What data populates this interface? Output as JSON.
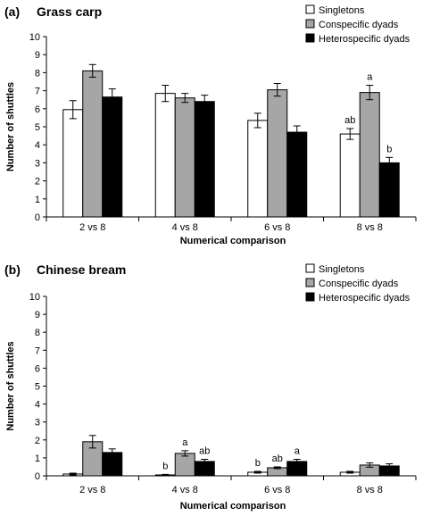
{
  "chart_data": [
    {
      "type": "bar",
      "panel": "(a)",
      "title": "Grass carp",
      "xlabel": "Numerical comparison",
      "ylabel": "Number of shuttles",
      "ylim": [
        0,
        10
      ],
      "yticks": [
        0,
        1,
        2,
        3,
        4,
        5,
        6,
        7,
        8,
        9,
        10
      ],
      "legend_position": "top-right",
      "categories": [
        "2 vs 8",
        "4 vs 8",
        "6 vs 8",
        "8 vs 8"
      ],
      "series": [
        {
          "name": "Singletons",
          "color": "#ffffff",
          "values": [
            5.95,
            6.85,
            5.35,
            4.6
          ],
          "errors": [
            0.5,
            0.45,
            0.4,
            0.3
          ]
        },
        {
          "name": "Conspecific dyads",
          "color": "#a6a6a6",
          "values": [
            8.1,
            6.6,
            7.05,
            6.9
          ],
          "errors": [
            0.35,
            0.25,
            0.35,
            0.4
          ]
        },
        {
          "name": "Heterospecific dyads",
          "color": "#000000",
          "values": [
            6.65,
            6.4,
            4.7,
            3.0
          ],
          "errors": [
            0.45,
            0.35,
            0.35,
            0.3
          ]
        }
      ],
      "annotations": [
        {
          "category": 3,
          "series": 0,
          "text": "ab"
        },
        {
          "category": 3,
          "series": 1,
          "text": "a"
        },
        {
          "category": 3,
          "series": 2,
          "text": "b"
        }
      ]
    },
    {
      "type": "bar",
      "panel": "(b)",
      "title": "Chinese bream",
      "xlabel": "Numerical comparison",
      "ylabel": "Number of shuttles",
      "ylim": [
        0,
        10
      ],
      "yticks": [
        0,
        1,
        2,
        3,
        4,
        5,
        6,
        7,
        8,
        9,
        10
      ],
      "legend_position": "top-right",
      "categories": [
        "2 vs 8",
        "4 vs 8",
        "6 vs 8",
        "8 vs 8"
      ],
      "series": [
        {
          "name": "Singletons",
          "color": "#ffffff",
          "values": [
            0.1,
            0.05,
            0.2,
            0.2
          ],
          "errors": [
            0.05,
            0.03,
            0.05,
            0.05
          ]
        },
        {
          "name": "Conspecific dyads",
          "color": "#a6a6a6",
          "values": [
            1.9,
            1.25,
            0.45,
            0.6
          ],
          "errors": [
            0.35,
            0.15,
            0.05,
            0.12
          ]
        },
        {
          "name": "Heterospecific dyads",
          "color": "#000000",
          "values": [
            1.3,
            0.8,
            0.8,
            0.55
          ],
          "errors": [
            0.2,
            0.12,
            0.12,
            0.12
          ]
        }
      ],
      "annotations": [
        {
          "category": 1,
          "series": 0,
          "text": "b"
        },
        {
          "category": 1,
          "series": 1,
          "text": "a"
        },
        {
          "category": 1,
          "series": 2,
          "text": "ab"
        },
        {
          "category": 2,
          "series": 0,
          "text": "b"
        },
        {
          "category": 2,
          "series": 1,
          "text": "ab"
        },
        {
          "category": 2,
          "series": 2,
          "text": "a"
        }
      ]
    }
  ]
}
